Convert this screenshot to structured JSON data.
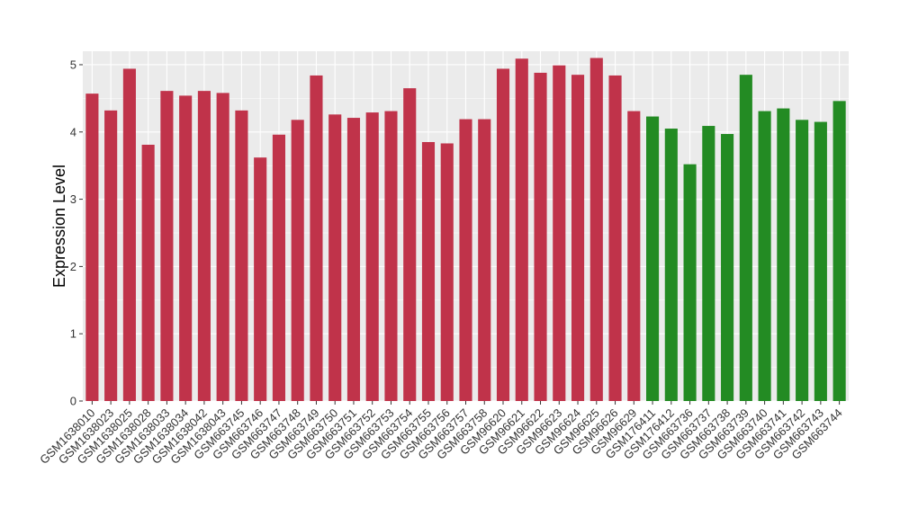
{
  "chart_data": {
    "type": "bar",
    "title": "",
    "xlabel": "",
    "ylabel": "Expression Level",
    "ylim": [
      0,
      5.2
    ],
    "yticks": [
      0,
      1,
      2,
      3,
      4,
      5
    ],
    "grid": true,
    "legend": "none",
    "colors": {
      "red": "#c0334a",
      "green": "#238b23",
      "panel": "#ebebeb",
      "grid": "#ffffff"
    },
    "categories": [
      "GSM1638010",
      "GSM1638023",
      "GSM1638025",
      "GSM1638028",
      "GSM1638033",
      "GSM1638034",
      "GSM1638042",
      "GSM1638043",
      "GSM663745",
      "GSM663746",
      "GSM663747",
      "GSM663748",
      "GSM663749",
      "GSM663750",
      "GSM663751",
      "GSM663752",
      "GSM663753",
      "GSM663754",
      "GSM663755",
      "GSM663756",
      "GSM663757",
      "GSM663758",
      "GSM96620",
      "GSM96621",
      "GSM96622",
      "GSM96623",
      "GSM96624",
      "GSM96625",
      "GSM96626",
      "GSM96629",
      "GSM176411",
      "GSM176412",
      "GSM663736",
      "GSM663737",
      "GSM663738",
      "GSM663739",
      "GSM663740",
      "GSM663741",
      "GSM663742",
      "GSM663743",
      "GSM663744"
    ],
    "values": [
      4.57,
      4.32,
      4.94,
      3.81,
      4.61,
      4.54,
      4.61,
      4.58,
      4.32,
      3.62,
      3.96,
      4.18,
      4.84,
      4.26,
      4.21,
      4.29,
      4.31,
      4.65,
      3.85,
      3.83,
      4.19,
      4.19,
      4.94,
      5.09,
      4.88,
      4.99,
      4.85,
      5.1,
      4.84,
      4.31,
      4.23,
      4.05,
      3.52,
      4.09,
      3.97,
      4.85,
      4.31,
      4.35,
      4.18,
      4.15,
      4.46
    ],
    "bar_colors": [
      "red",
      "red",
      "red",
      "red",
      "red",
      "red",
      "red",
      "red",
      "red",
      "red",
      "red",
      "red",
      "red",
      "red",
      "red",
      "red",
      "red",
      "red",
      "red",
      "red",
      "red",
      "red",
      "red",
      "red",
      "red",
      "red",
      "red",
      "red",
      "red",
      "red",
      "green",
      "green",
      "green",
      "green",
      "green",
      "green",
      "green",
      "green",
      "green",
      "green",
      "green"
    ]
  }
}
